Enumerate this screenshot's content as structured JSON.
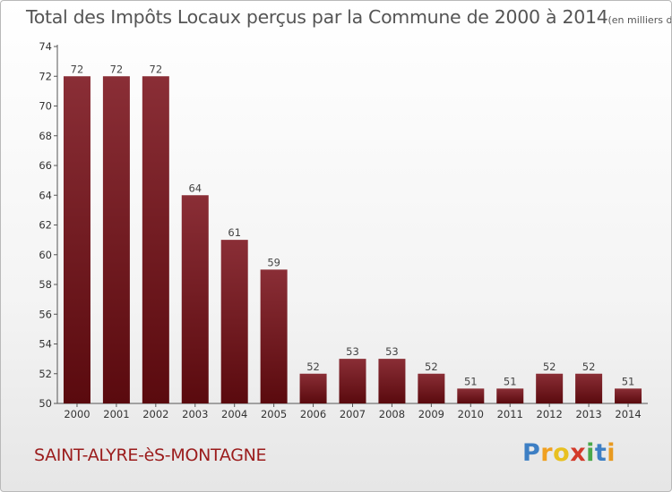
{
  "header": {
    "title": "Total des Impôts Locaux perçus par la Commune de 2000 à 2014",
    "unit": "(en milliers d'€)"
  },
  "footer": {
    "commune": "SAINT-ALYRE-èS-MONTAGNE",
    "logo": "Proxiti"
  },
  "colors": {
    "bar_top": "#8a2e36",
    "bar_bottom": "#5a0a0e",
    "commune_text": "#9b1c1c"
  },
  "chart_data": {
    "type": "bar",
    "title": "Total des Impôts Locaux perçus par la Commune de 2000 à 2014",
    "xlabel": "",
    "ylabel": "",
    "categories": [
      "2000",
      "2001",
      "2002",
      "2003",
      "2004",
      "2005",
      "2006",
      "2007",
      "2008",
      "2009",
      "2010",
      "2011",
      "2012",
      "2013",
      "2014"
    ],
    "values": [
      72,
      72,
      72,
      64,
      61,
      59,
      52,
      53,
      53,
      52,
      51,
      51,
      52,
      52,
      51
    ],
    "ylim": [
      50,
      74
    ],
    "yticks": [
      50,
      52,
      54,
      56,
      58,
      60,
      62,
      64,
      66,
      68,
      70,
      72,
      74
    ],
    "grid": false,
    "legend": "none"
  }
}
